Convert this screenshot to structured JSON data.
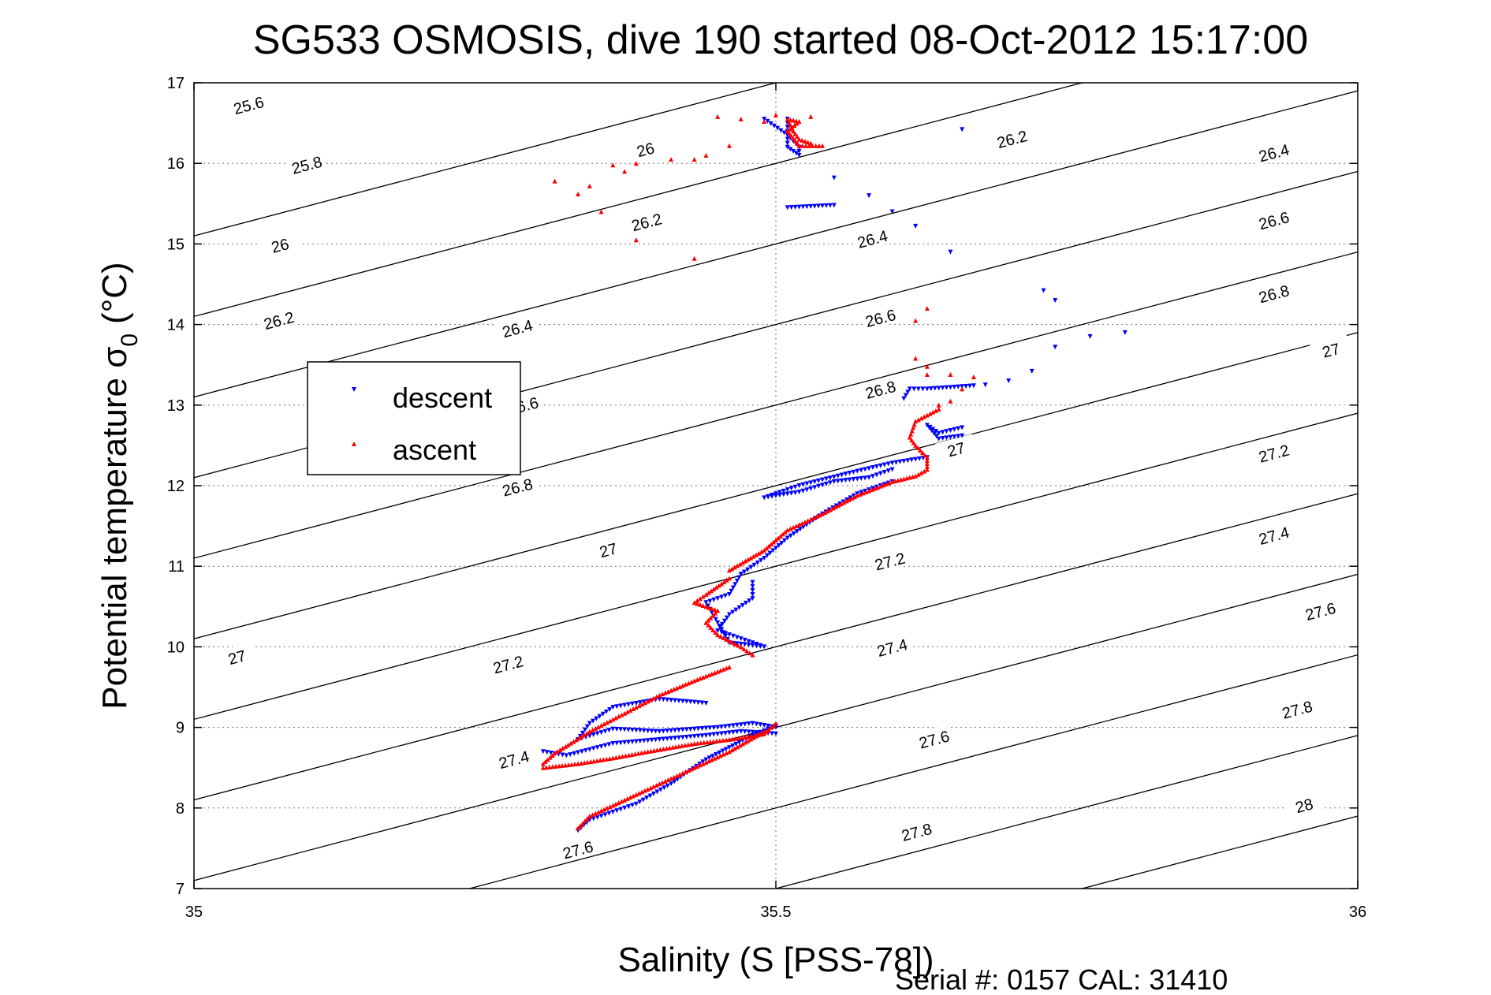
{
  "chart_data": {
    "type": "scatter",
    "title": "SG533 OSMOSIS, dive 190 started 08-Oct-2012 15:17:00",
    "xlabel": "Salinity (S [PSS-78])",
    "ylabel_main": "Potential temperature σ",
    "ylabel_sub": "0",
    "ylabel_unit": "(°C)",
    "footer": "Serial #: 0157  CAL: 31410",
    "xlim": [
      35,
      36
    ],
    "ylim": [
      7,
      17
    ],
    "xticks": [
      35,
      35.5,
      36
    ],
    "xtick_labels": [
      "35",
      "35.5",
      "36"
    ],
    "yticks": [
      7,
      8,
      9,
      10,
      11,
      12,
      13,
      14,
      15,
      16,
      17
    ],
    "ytick_labels": [
      "7",
      "8",
      "9",
      "10",
      "11",
      "12",
      "13",
      "14",
      "15",
      "16",
      "17"
    ],
    "grid": true,
    "legend": [
      {
        "name": "descent",
        "color": "#0000ff",
        "marker": "triangle-down"
      },
      {
        "name": "ascent",
        "color": "#ff0000",
        "marker": "triangle-up"
      }
    ],
    "legend_position": "left",
    "density_contours": {
      "levels": [
        25.6,
        25.8,
        26,
        26.2,
        26.4,
        26.6,
        26.8,
        27,
        27.2,
        27.4,
        27.6,
        27.8,
        28
      ],
      "labels": [
        {
          "text": "25.6",
          "s": 35.047,
          "t": 16.72
        },
        {
          "text": "25.8",
          "s": 35.097,
          "t": 15.98
        },
        {
          "text": "26",
          "s": 35.074,
          "t": 14.98
        },
        {
          "text": "26.2",
          "s": 35.073,
          "t": 14.05
        },
        {
          "text": "26",
          "s": 35.388,
          "t": 16.17
        },
        {
          "text": "26.4",
          "s": 35.278,
          "t": 13.95
        },
        {
          "text": "26.2",
          "s": 35.389,
          "t": 15.27
        },
        {
          "text": "26.6",
          "s": 35.283,
          "t": 12.99
        },
        {
          "text": "26.8",
          "s": 35.278,
          "t": 11.98
        },
        {
          "text": "27",
          "s": 35.356,
          "t": 11.2
        },
        {
          "text": "27",
          "s": 35.037,
          "t": 9.87
        },
        {
          "text": "27.2",
          "s": 35.27,
          "t": 9.78
        },
        {
          "text": "27.4",
          "s": 35.275,
          "t": 8.6
        },
        {
          "text": "27.6",
          "s": 35.33,
          "t": 7.48
        },
        {
          "text": "26.2",
          "s": 35.703,
          "t": 16.3
        },
        {
          "text": "26.4",
          "s": 35.583,
          "t": 15.06
        },
        {
          "text": "26.6",
          "s": 35.59,
          "t": 14.08
        },
        {
          "text": "26.8",
          "s": 35.59,
          "t": 13.19
        },
        {
          "text": "27",
          "s": 35.655,
          "t": 12.45
        },
        {
          "text": "27.2",
          "s": 35.598,
          "t": 11.06
        },
        {
          "text": "27.4",
          "s": 35.6,
          "t": 9.99
        },
        {
          "text": "27.6",
          "s": 35.636,
          "t": 8.85
        },
        {
          "text": "27.8",
          "s": 35.621,
          "t": 7.7
        },
        {
          "text": "26.4",
          "s": 35.928,
          "t": 16.13
        },
        {
          "text": "26.6",
          "s": 35.928,
          "t": 15.29
        },
        {
          "text": "26.8",
          "s": 35.928,
          "t": 14.38
        },
        {
          "text": "27",
          "s": 35.977,
          "t": 13.68
        },
        {
          "text": "27.2",
          "s": 35.928,
          "t": 12.4
        },
        {
          "text": "27.4",
          "s": 35.928,
          "t": 11.38
        },
        {
          "text": "27.6",
          "s": 35.968,
          "t": 10.44
        },
        {
          "text": "27.8",
          "s": 35.948,
          "t": 9.22
        },
        {
          "text": "28",
          "s": 35.954,
          "t": 8.03
        }
      ]
    },
    "series": [
      {
        "name": "descent",
        "color": "#0000ff",
        "path": [
          [
            35.51,
            16.55
          ],
          [
            35.51,
            16.45
          ],
          [
            35.51,
            16.3
          ],
          [
            35.51,
            16.2
          ],
          [
            35.52,
            16.1
          ],
          [
            35.52,
            16.2
          ],
          [
            35.51,
            16.35
          ],
          [
            35.49,
            16.55
          ]
        ],
        "scatter": [
          [
            35.66,
            16.42
          ],
          [
            35.58,
            15.6
          ],
          [
            35.55,
            15.82
          ],
          [
            35.6,
            15.4
          ],
          [
            35.62,
            15.22
          ],
          [
            35.65,
            14.9
          ],
          [
            35.73,
            14.42
          ],
          [
            35.74,
            14.3
          ],
          [
            35.8,
            13.9
          ],
          [
            35.77,
            13.85
          ],
          [
            35.74,
            13.72
          ],
          [
            35.72,
            13.42
          ],
          [
            35.7,
            13.3
          ],
          [
            35.68,
            13.25
          ]
        ],
        "segments": [
          [
            [
              35.55,
              15.48
            ],
            [
              35.51,
              15.45
            ]
          ],
          [
            [
              35.61,
              13.08
            ],
            [
              35.615,
              13.2
            ],
            [
              35.63,
              13.2
            ],
            [
              35.65,
              13.22
            ],
            [
              35.67,
              13.24
            ]
          ],
          [
            [
              35.66,
              12.72
            ],
            [
              35.64,
              12.65
            ],
            [
              35.63,
              12.75
            ],
            [
              35.64,
              12.58
            ],
            [
              35.66,
              12.62
            ]
          ],
          [
            [
              35.63,
              12.35
            ],
            [
              35.6,
              12.28
            ],
            [
              35.57,
              12.18
            ],
            [
              35.52,
              12.0
            ],
            [
              35.49,
              11.85
            ],
            [
              35.52,
              11.92
            ],
            [
              35.55,
              12.05
            ],
            [
              35.58,
              12.1
            ],
            [
              35.6,
              12.2
            ]
          ],
          [
            [
              35.6,
              12.05
            ],
            [
              35.57,
              11.9
            ],
            [
              35.54,
              11.65
            ],
            [
              35.51,
              11.35
            ],
            [
              35.49,
              11.1
            ],
            [
              35.47,
              10.9
            ]
          ],
          [
            [
              35.47,
              10.9
            ],
            [
              35.46,
              10.65
            ],
            [
              35.44,
              10.55
            ],
            [
              35.45,
              10.3
            ],
            [
              35.46,
              10.05
            ],
            [
              35.49,
              10.0
            ],
            [
              35.45,
              10.2
            ],
            [
              35.46,
              10.4
            ],
            [
              35.48,
              10.6
            ],
            [
              35.48,
              10.8
            ]
          ],
          [
            [
              35.44,
              9.3
            ],
            [
              35.4,
              9.35
            ],
            [
              35.36,
              9.25
            ],
            [
              35.34,
              9.05
            ],
            [
              35.33,
              8.85
            ],
            [
              35.36,
              8.98
            ],
            [
              35.4,
              8.95
            ],
            [
              35.45,
              9.0
            ],
            [
              35.48,
              9.05
            ],
            [
              35.5,
              9.0
            ]
          ],
          [
            [
              35.5,
              9.02
            ],
            [
              35.48,
              8.9
            ],
            [
              35.46,
              8.75
            ],
            [
              35.44,
              8.6
            ],
            [
              35.41,
              8.3
            ],
            [
              35.38,
              8.05
            ],
            [
              35.34,
              7.85
            ],
            [
              35.33,
              7.72
            ]
          ],
          [
            [
              35.3,
              8.7
            ],
            [
              35.32,
              8.65
            ],
            [
              35.36,
              8.8
            ],
            [
              35.4,
              8.85
            ],
            [
              35.44,
              8.9
            ],
            [
              35.47,
              8.95
            ],
            [
              35.5,
              8.92
            ]
          ]
        ]
      },
      {
        "name": "ascent",
        "color": "#ff0000",
        "path": [
          [
            35.53,
            16.25
          ],
          [
            35.52,
            16.3
          ],
          [
            35.515,
            16.4
          ],
          [
            35.51,
            16.55
          ],
          [
            35.52,
            16.52
          ],
          [
            35.51,
            16.4
          ],
          [
            35.52,
            16.22
          ],
          [
            35.54,
            16.22
          ]
        ],
        "scatter": [
          [
            35.45,
            16.58
          ],
          [
            35.47,
            16.55
          ],
          [
            35.5,
            16.6
          ],
          [
            35.53,
            16.58
          ],
          [
            35.49,
            16.52
          ],
          [
            35.46,
            16.22
          ],
          [
            35.44,
            16.1
          ],
          [
            35.43,
            16.05
          ],
          [
            35.41,
            16.05
          ],
          [
            35.38,
            16.0
          ],
          [
            35.36,
            15.98
          ],
          [
            35.34,
            15.72
          ],
          [
            35.33,
            15.62
          ],
          [
            35.35,
            15.4
          ],
          [
            35.38,
            15.05
          ],
          [
            35.43,
            14.82
          ],
          [
            35.37,
            15.9
          ],
          [
            35.31,
            15.78
          ],
          [
            35.63,
            14.2
          ],
          [
            35.62,
            14.05
          ],
          [
            35.62,
            13.58
          ],
          [
            35.63,
            13.48
          ],
          [
            35.63,
            13.38
          ],
          [
            35.65,
            13.38
          ],
          [
            35.67,
            13.35
          ],
          [
            35.66,
            13.2
          ],
          [
            35.65,
            13.05
          ],
          [
            35.64,
            13.0
          ]
        ],
        "segments": [
          [
            [
              35.64,
              12.95
            ],
            [
              35.62,
              12.8
            ],
            [
              35.615,
              12.6
            ],
            [
              35.62,
              12.5
            ],
            [
              35.63,
              12.35
            ],
            [
              35.63,
              12.2
            ],
            [
              35.62,
              12.12
            ],
            [
              35.6,
              12.05
            ],
            [
              35.57,
              11.88
            ],
            [
              35.54,
              11.65
            ],
            [
              35.51,
              11.45
            ],
            [
              35.49,
              11.2
            ],
            [
              35.46,
              10.95
            ]
          ],
          [
            [
              35.46,
              10.85
            ],
            [
              35.44,
              10.65
            ],
            [
              35.43,
              10.55
            ],
            [
              35.45,
              10.45
            ],
            [
              35.44,
              10.3
            ],
            [
              35.45,
              10.15
            ],
            [
              35.47,
              10.0
            ],
            [
              35.48,
              9.9
            ]
          ],
          [
            [
              35.46,
              9.75
            ],
            [
              35.43,
              9.58
            ],
            [
              35.4,
              9.4
            ],
            [
              35.38,
              9.25
            ],
            [
              35.36,
              9.1
            ],
            [
              35.34,
              8.95
            ],
            [
              35.31,
              8.68
            ],
            [
              35.3,
              8.55
            ]
          ],
          [
            [
              35.3,
              8.5
            ],
            [
              35.33,
              8.55
            ],
            [
              35.36,
              8.62
            ],
            [
              35.39,
              8.7
            ],
            [
              35.43,
              8.8
            ],
            [
              35.46,
              8.85
            ],
            [
              35.49,
              8.92
            ],
            [
              35.5,
              9.05
            ]
          ],
          [
            [
              35.49,
              8.95
            ],
            [
              35.46,
              8.7
            ],
            [
              35.43,
              8.5
            ],
            [
              35.4,
              8.3
            ],
            [
              35.37,
              8.1
            ],
            [
              35.34,
              7.9
            ],
            [
              35.33,
              7.75
            ]
          ]
        ]
      }
    ]
  }
}
